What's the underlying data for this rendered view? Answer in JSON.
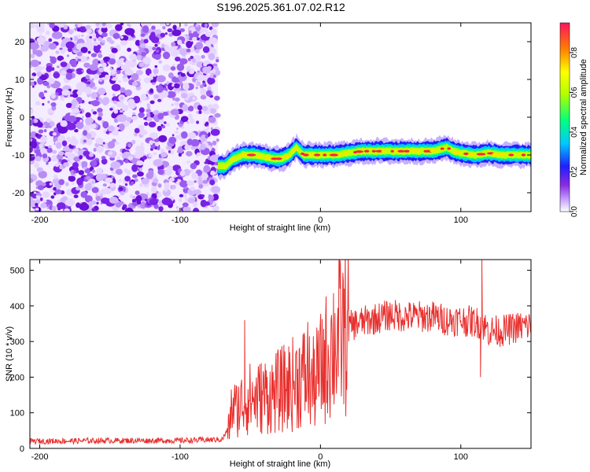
{
  "title": "S196.2025.361.07.02.R12",
  "colors": {
    "line": "#e8302e",
    "axis": "#000000",
    "background": "#ffffff"
  },
  "chart_data": [
    {
      "type": "heatmap",
      "xlabel": "Height of straight line (km)",
      "ylabel": "Frequency (Hz)",
      "xlim": [
        -207,
        150
      ],
      "ylim": [
        -25,
        25
      ],
      "xticks": [
        -200,
        -100,
        0,
        100
      ],
      "yticks": [
        20,
        10,
        0,
        -10,
        -20
      ],
      "noise_region_x": [
        -207,
        -73
      ],
      "signal_track": {
        "x": [
          -73,
          -68,
          -62,
          -55,
          -48,
          -40,
          -34,
          -28,
          -22,
          -17,
          -12,
          -5,
          0,
          10,
          20,
          30,
          40,
          50,
          60,
          70,
          80,
          85,
          90,
          95,
          100,
          110,
          120,
          130,
          140,
          150
        ],
        "freq": [
          -13,
          -13,
          -11,
          -10,
          -10,
          -10.5,
          -11,
          -11,
          -10,
          -8,
          -10,
          -10,
          -10,
          -10,
          -9.5,
          -9,
          -9,
          -9,
          -9,
          -9,
          -9,
          -8.5,
          -8,
          -9,
          -9.5,
          -10,
          -9.5,
          -10,
          -10,
          -10
        ]
      },
      "colorbar": {
        "label": "Normalized spectral amplitude",
        "range": [
          0.0,
          0.95
        ],
        "ticks": [
          "0.0",
          "0.2",
          "0.4",
          "0.6",
          "0.8"
        ]
      }
    },
    {
      "type": "line",
      "xlabel": "Height of straight line (km)",
      "ylabel": "SNR (10 * v/v)",
      "xlim": [
        -207,
        150
      ],
      "ylim": [
        0,
        530
      ],
      "xticks": [
        -200,
        -100,
        0,
        100
      ],
      "yticks": [
        0,
        100,
        200,
        300,
        400,
        500
      ],
      "series": [
        {
          "name": "SNR",
          "x": [
            -207,
            -150,
            -100,
            -70,
            -65,
            -63,
            -60,
            -55,
            -50,
            -45,
            -40,
            -35,
            -30,
            -25,
            -20,
            -15,
            -10,
            -5,
            0,
            5,
            10,
            15,
            20,
            25,
            30,
            40,
            50,
            60,
            70,
            80,
            90,
            100,
            110,
            115,
            120,
            130,
            140,
            150
          ],
          "y": [
            20,
            22,
            22,
            25,
            60,
            120,
            110,
            130,
            140,
            140,
            150,
            150,
            160,
            170,
            180,
            200,
            200,
            180,
            220,
            260,
            300,
            320,
            340,
            350,
            355,
            365,
            375,
            370,
            370,
            370,
            360,
            360,
            355,
            350,
            330,
            330,
            340,
            345
          ],
          "spikes": [
            {
              "x": -54,
              "y": 360
            },
            {
              "x": -9,
              "y": 355
            },
            {
              "x": 115,
              "y": 530
            },
            {
              "x": 114,
              "y": 200
            }
          ]
        }
      ]
    }
  ]
}
